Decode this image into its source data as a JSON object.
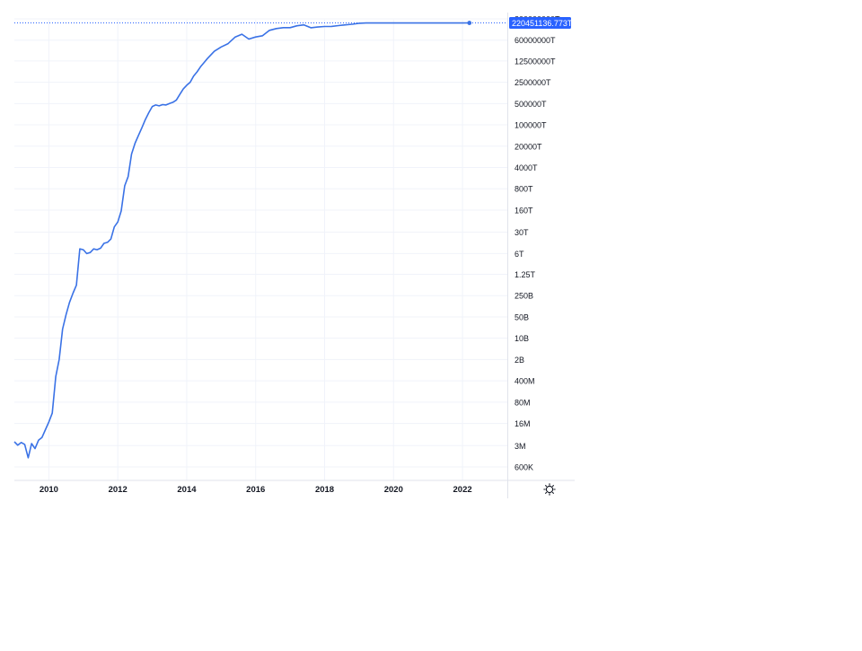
{
  "chart_data": {
    "type": "line",
    "title": "",
    "xlabel": "",
    "ylabel": "",
    "scale": "log",
    "grid": true,
    "legend": "none",
    "line_color": "#3a72e6",
    "grid_color": "#f0f3fa",
    "label_color": "#131722",
    "badge_color": "#2962ff",
    "x_ticks": [
      "2010",
      "2012",
      "2014",
      "2016",
      "2018",
      "2020",
      "2022"
    ],
    "y_ticks": [
      {
        "label": "300000000T",
        "value": 3e+20
      },
      {
        "label": "60000000T",
        "value": 6e+19
      },
      {
        "label": "12500000T",
        "value": 1.25e+19
      },
      {
        "label": "2500000T",
        "value": 2.5e+18
      },
      {
        "label": "500000T",
        "value": 5e+17
      },
      {
        "label": "100000T",
        "value": 1e+17
      },
      {
        "label": "20000T",
        "value": 2e+16
      },
      {
        "label": "4000T",
        "value": 4000000000000000.0
      },
      {
        "label": "800T",
        "value": 800000000000000.0
      },
      {
        "label": "160T",
        "value": 160000000000000.0
      },
      {
        "label": "30T",
        "value": 30000000000000.0
      },
      {
        "label": "6T",
        "value": 6000000000000.0
      },
      {
        "label": "1.25T",
        "value": 1250000000000.0
      },
      {
        "label": "250B",
        "value": 250000000000.0
      },
      {
        "label": "50B",
        "value": 50000000000.0
      },
      {
        "label": "10B",
        "value": 10000000000.0
      },
      {
        "label": "2B",
        "value": 2000000000.0
      },
      {
        "label": "400M",
        "value": 400000000.0
      },
      {
        "label": "80M",
        "value": 80000000.0
      },
      {
        "label": "16M",
        "value": 16000000.0
      },
      {
        "label": "3M",
        "value": 3000000.0
      },
      {
        "label": "600K",
        "value": 600000.0
      }
    ],
    "last_value_label": "220451136.773T",
    "last_value": 2.2045e+20,
    "x": [
      2009.0,
      2009.1,
      2009.2,
      2009.3,
      2009.4,
      2009.5,
      2009.6,
      2009.7,
      2009.8,
      2009.9,
      2010.0,
      2010.1,
      2010.2,
      2010.3,
      2010.4,
      2010.5,
      2010.6,
      2010.7,
      2010.8,
      2010.9,
      2011.0,
      2011.1,
      2011.2,
      2011.3,
      2011.4,
      2011.5,
      2011.6,
      2011.7,
      2011.8,
      2011.9,
      2012.0,
      2012.1,
      2012.2,
      2012.3,
      2012.4,
      2012.5,
      2012.6,
      2012.7,
      2012.8,
      2012.9,
      2013.0,
      2013.1,
      2013.2,
      2013.3,
      2013.4,
      2013.5,
      2013.6,
      2013.7,
      2013.8,
      2013.9,
      2014.0,
      2014.1,
      2014.2,
      2014.3,
      2014.4,
      2014.5,
      2014.6,
      2014.8,
      2015.0,
      2015.2,
      2015.4,
      2015.6,
      2015.8,
      2016.0,
      2016.2,
      2016.4,
      2016.6,
      2016.8,
      2017.0,
      2017.2,
      2017.4,
      2017.6,
      2017.8,
      2018.0,
      2018.2,
      2018.4,
      2018.6,
      2018.8,
      2019.0,
      2019.2,
      2019.4,
      2019.6,
      2019.8,
      2020.0,
      2020.2,
      2020.4,
      2020.6,
      2020.8,
      2021.0,
      2021.2,
      2021.4,
      2021.6,
      2021.8,
      2022.0,
      2022.2
    ],
    "y": [
      4000000.0,
      3100000.0,
      3800000.0,
      3300000.0,
      1200000.0,
      3500000.0,
      2400000.0,
      4500000.0,
      5500000.0,
      10000000.0,
      18000000.0,
      35000000.0,
      550000000.0,
      2000000000.0,
      20000000000.0,
      60000000000.0,
      150000000000.0,
      300000000000.0,
      550000000000.0,
      8500000000000.0,
      8000000000000.0,
      6000000000000.0,
      6500000000000.0,
      8500000000000.0,
      8000000000000.0,
      9000000000000.0,
      13000000000000.0,
      14000000000000.0,
      18000000000000.0,
      45000000000000.0,
      65000000000000.0,
      150000000000000.0,
      1000000000000000.0,
      2000000000000000.0,
      1.1e+16,
      2.5e+16,
      4.5e+16,
      8e+16,
      1.5e+17,
      2.5e+17,
      4e+17,
      4.5e+17,
      4.2e+17,
      4.6e+17,
      4.5e+17,
      5e+17,
      5.5e+17,
      6.5e+17,
      1e+18,
      1.5e+18,
      2e+18,
      2.5e+18,
      4e+18,
      5.5e+18,
      8e+18,
      1.1e+19,
      1.5e+19,
      2.6e+19,
      3.6e+19,
      4.6e+19,
      7.5e+19,
      9.4e+19,
      6.5e+19,
      7.6e+19,
      8.4e+19,
      1.26e+20,
      1.44e+20,
      1.54e+20,
      1.54e+20,
      1.78e+20,
      1.91e+20,
      1.53e+20,
      1.62e+20,
      1.68e+20,
      1.7e+20,
      1.8e+20,
      1.9e+20,
      2e+20,
      2.15e+20,
      2.2e+20,
      2.2e+20,
      2.2e+20,
      2.2e+20,
      2.2e+20,
      2.2e+20,
      2.2e+20,
      2.2e+20,
      2.2e+20,
      2.2e+20,
      2.2e+20,
      2.2e+20,
      2.2e+20,
      2.2e+20,
      2.2e+20,
      2.2045e+20
    ],
    "icons": {
      "settings": "gear-icon"
    }
  }
}
